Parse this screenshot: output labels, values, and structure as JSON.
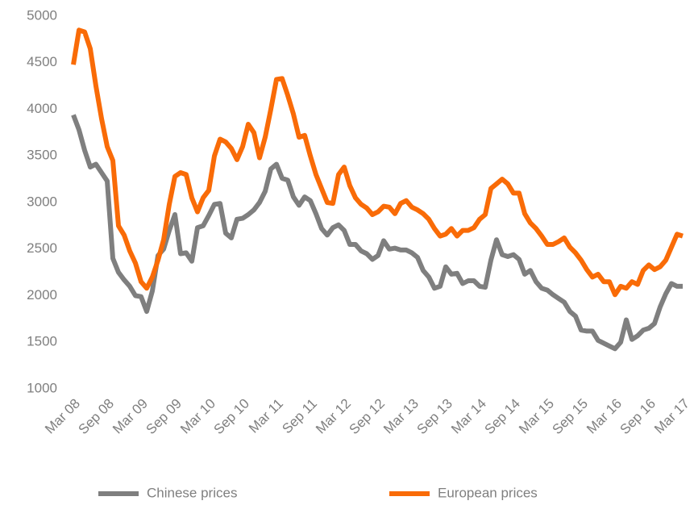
{
  "chart_data": {
    "type": "line",
    "categories": [
      "Mar 08",
      null,
      null,
      null,
      null,
      null,
      "Sep 08",
      null,
      null,
      null,
      null,
      null,
      "Mar 09",
      null,
      null,
      null,
      null,
      null,
      "Sep 09",
      null,
      null,
      null,
      null,
      null,
      "Mar 10",
      null,
      null,
      null,
      null,
      null,
      "Sep 10",
      null,
      null,
      null,
      null,
      null,
      "Mar 11",
      null,
      null,
      null,
      null,
      null,
      "Sep 11",
      null,
      null,
      null,
      null,
      null,
      "Mar 12",
      null,
      null,
      null,
      null,
      null,
      "Sep 12",
      null,
      null,
      null,
      null,
      null,
      "Mar 13",
      null,
      null,
      null,
      null,
      null,
      "Sep 13",
      null,
      null,
      null,
      null,
      null,
      "Mar 14",
      null,
      null,
      null,
      null,
      null,
      "Sep 14",
      null,
      null,
      null,
      null,
      null,
      "Mar 15",
      null,
      null,
      null,
      null,
      null,
      "Sep 15",
      null,
      null,
      null,
      null,
      null,
      "Mar 16",
      null,
      null,
      null,
      null,
      null,
      "Sep 16",
      null,
      null,
      null,
      null,
      null,
      "Mar 17"
    ],
    "series": [
      {
        "name": "Chinese prices",
        "color": "#7f7f7f",
        "values": [
          3940,
          3780,
          3560,
          3380,
          3410,
          3320,
          3230,
          2400,
          2250,
          2170,
          2100,
          2000,
          1990,
          1830,
          2050,
          2430,
          2500,
          2700,
          2870,
          2450,
          2460,
          2370,
          2730,
          2750,
          2860,
          2980,
          2990,
          2670,
          2620,
          2820,
          2830,
          2870,
          2920,
          3000,
          3120,
          3360,
          3410,
          3260,
          3240,
          3060,
          2970,
          3060,
          3020,
          2880,
          2720,
          2650,
          2730,
          2760,
          2700,
          2550,
          2550,
          2480,
          2450,
          2390,
          2430,
          2590,
          2500,
          2510,
          2490,
          2490,
          2460,
          2410,
          2270,
          2200,
          2080,
          2100,
          2310,
          2230,
          2240,
          2130,
          2160,
          2160,
          2100,
          2090,
          2380,
          2600,
          2440,
          2420,
          2440,
          2390,
          2230,
          2270,
          2150,
          2080,
          2060,
          2010,
          1970,
          1930,
          1830,
          1780,
          1630,
          1620,
          1620,
          1520,
          1490,
          1460,
          1430,
          1500,
          1740,
          1530,
          1570,
          1630,
          1650,
          1700,
          1880,
          2020,
          2130,
          2100,
          2100
        ]
      },
      {
        "name": "European prices",
        "color": "#f96b07",
        "values": [
          4480,
          4850,
          4830,
          4650,
          4250,
          3900,
          3600,
          3450,
          2750,
          2650,
          2480,
          2350,
          2150,
          2080,
          2200,
          2380,
          2600,
          2980,
          3280,
          3320,
          3300,
          3050,
          2900,
          3050,
          3130,
          3500,
          3680,
          3650,
          3580,
          3460,
          3600,
          3840,
          3750,
          3480,
          3700,
          4000,
          4320,
          4330,
          4150,
          3950,
          3700,
          3720,
          3500,
          3300,
          3150,
          3000,
          2990,
          3300,
          3380,
          3180,
          3050,
          2980,
          2940,
          2870,
          2900,
          2960,
          2950,
          2880,
          2990,
          3020,
          2950,
          2920,
          2880,
          2820,
          2720,
          2640,
          2660,
          2720,
          2640,
          2700,
          2700,
          2730,
          2820,
          2870,
          3150,
          3200,
          3250,
          3200,
          3100,
          3100,
          2880,
          2780,
          2720,
          2640,
          2550,
          2550,
          2580,
          2620,
          2520,
          2460,
          2380,
          2280,
          2200,
          2230,
          2150,
          2150,
          2010,
          2100,
          2080,
          2150,
          2120,
          2270,
          2330,
          2280,
          2310,
          2380,
          2520,
          2660,
          2640
        ]
      }
    ],
    "ylim": [
      1000,
      5000
    ],
    "yticks": [
      1000,
      1500,
      2000,
      2500,
      3000,
      3500,
      4000,
      4500,
      5000
    ],
    "grid": false
  }
}
